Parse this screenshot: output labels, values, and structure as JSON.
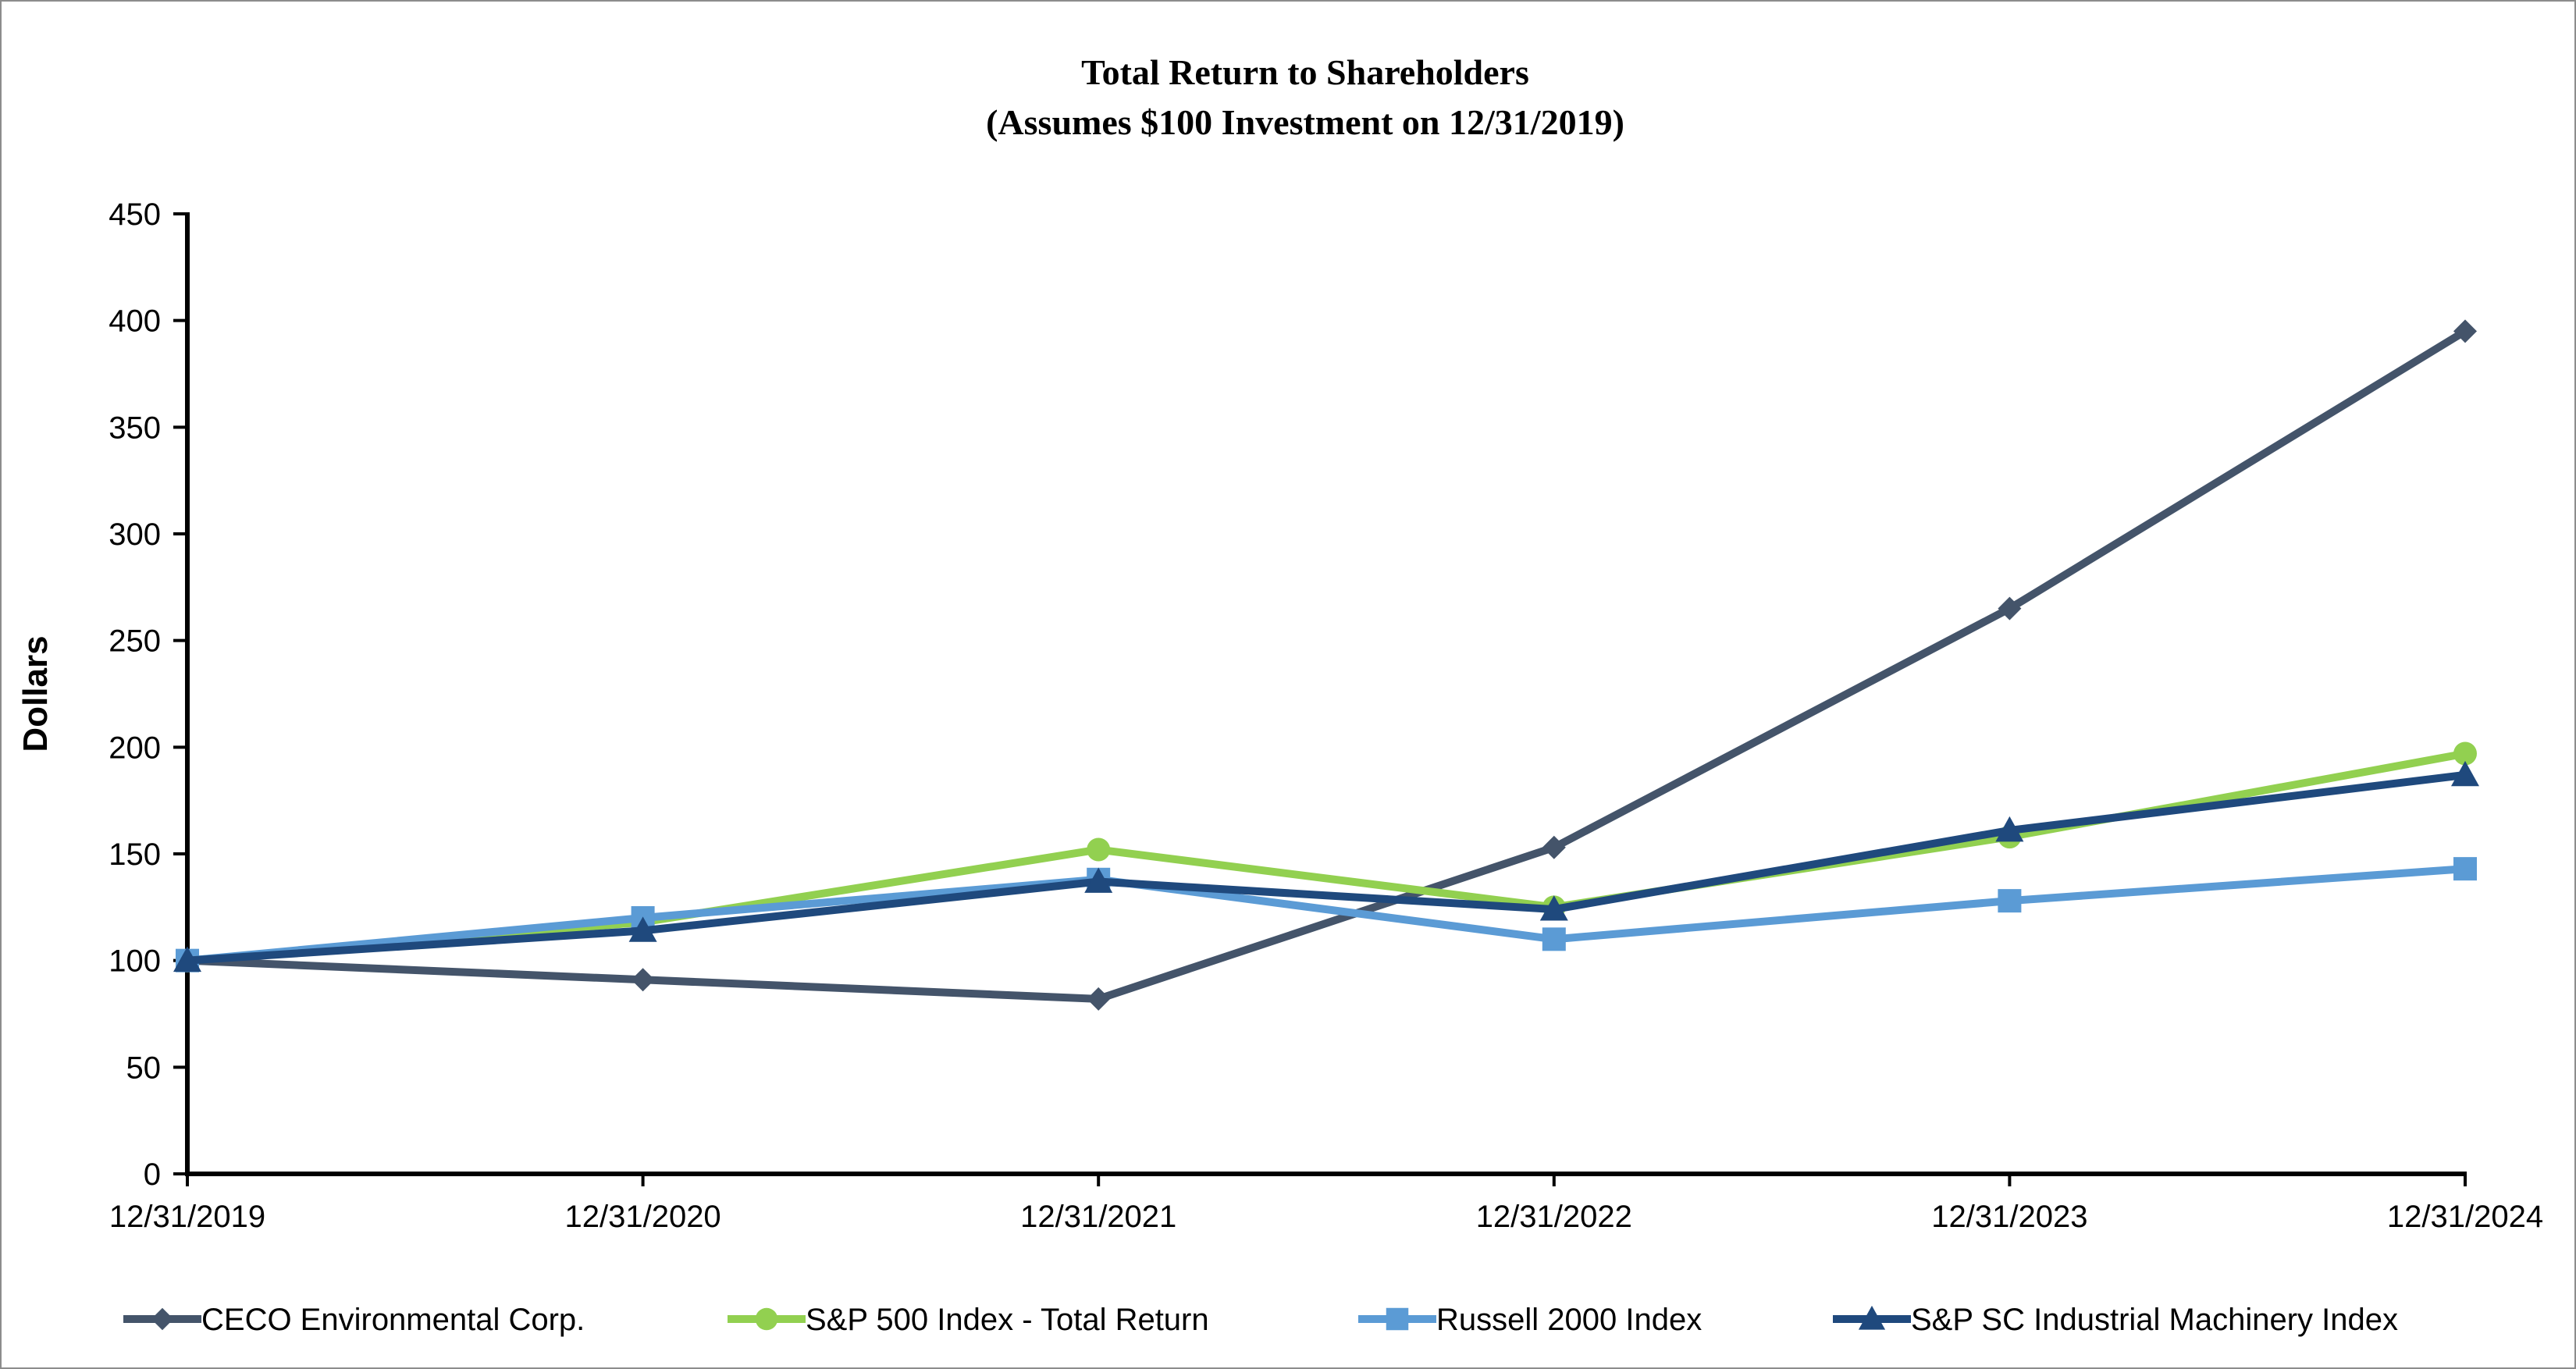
{
  "chart_data": {
    "type": "line",
    "title": "Total Return to Shareholders",
    "subtitle": "(Assumes $100 Investment on 12/31/2019)",
    "xlabel": "",
    "ylabel": "Dollars",
    "ylim": [
      0,
      450
    ],
    "yticks": [
      0,
      50,
      100,
      150,
      200,
      250,
      300,
      350,
      400,
      450
    ],
    "grid": false,
    "legend_position": "bottom",
    "categories": [
      "12/31/2019",
      "12/31/2020",
      "12/31/2021",
      "12/31/2022",
      "12/31/2023",
      "12/31/2024"
    ],
    "series": [
      {
        "name": "CECO Environmental Corp.",
        "marker": "diamond",
        "color": "#44546a",
        "values": [
          100,
          91,
          82,
          153,
          265,
          395
        ]
      },
      {
        "name": "S&P 500 Index - Total Return",
        "marker": "circle",
        "color": "#92d050",
        "values": [
          100,
          118,
          152,
          125,
          158,
          197
        ]
      },
      {
        "name": "Russell 2000 Index",
        "marker": "square",
        "color": "#5b9bd5",
        "values": [
          100,
          120,
          138,
          110,
          128,
          143
        ]
      },
      {
        "name": "S&P SC Industrial Machinery Index",
        "marker": "triangle",
        "color": "#1f497d",
        "values": [
          100,
          114,
          137,
          124,
          161,
          187
        ]
      }
    ]
  }
}
